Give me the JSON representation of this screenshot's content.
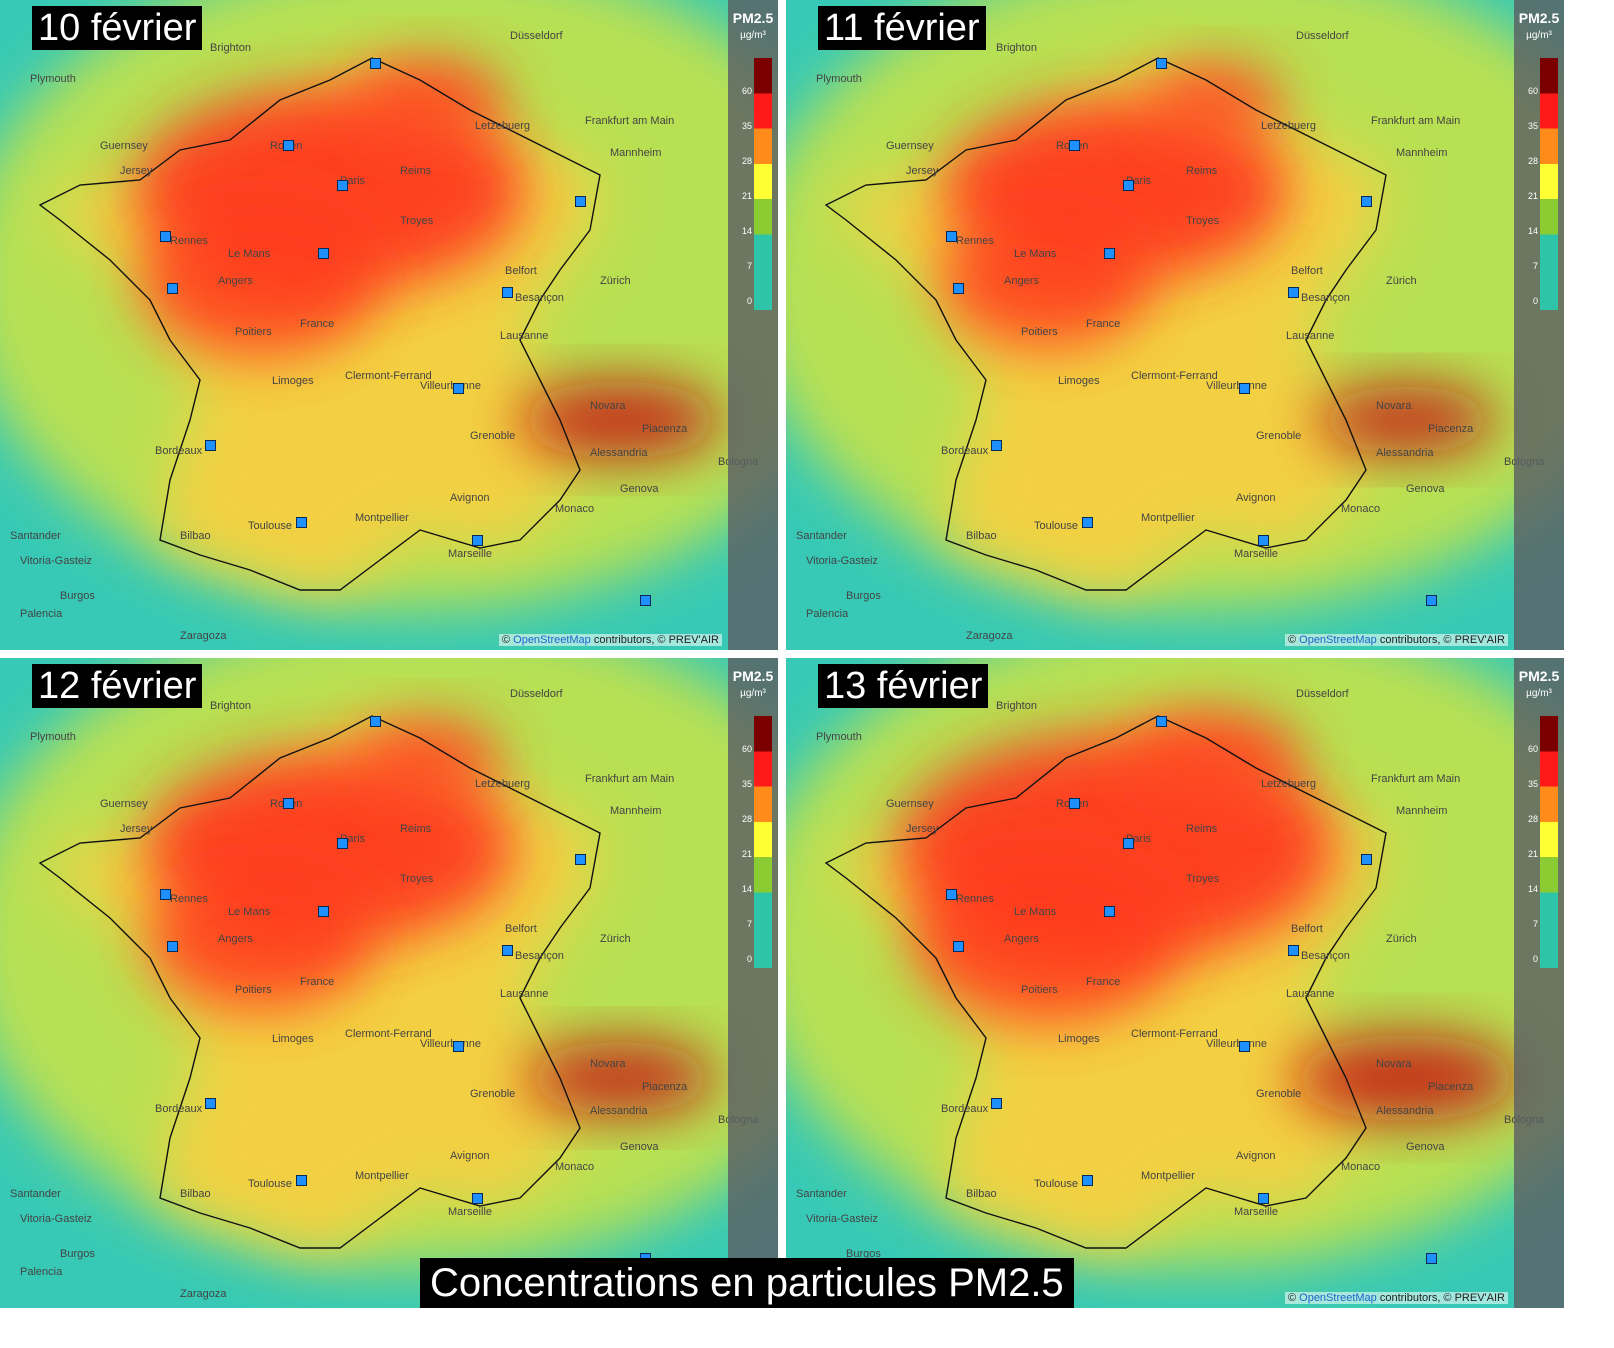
{
  "caption": "Concentrations en particules PM2.5",
  "legend": {
    "title": "PM2.5",
    "unit": "µg/m³",
    "ticks": [
      "60",
      "35",
      "28",
      "21",
      "14",
      "7",
      "0"
    ],
    "colors": [
      "#7a0000",
      "#ff1a1a",
      "#ff8c1a",
      "#ffff33",
      "#8ccc33",
      "#2ec4a8"
    ]
  },
  "credit": {
    "prefix": "© ",
    "osm": "OpenStreetMap",
    "rest": " contributors, © PREV'AIR"
  },
  "cities": [
    "Paris",
    "Rennes",
    "Le Mans",
    "Angers",
    "Poitiers",
    "France",
    "Limoges",
    "Clermont-Ferrand",
    "Villeurbanne",
    "Grenoble",
    "Bordeaux",
    "Toulouse",
    "Montpellier",
    "Marseille",
    "Reims",
    "Troyes",
    "Belfort",
    "Besançon",
    "Lausanne",
    "Genova",
    "Bologna",
    "Zaragoza",
    "Vitoria-Gasteiz",
    "Frankfurt am Main",
    "Düsseldorf",
    "Letzebuerg",
    "Rouen",
    "Jersey",
    "Guernsey",
    "Plymouth",
    "Brighton",
    "Mannheim",
    "Zürich",
    "Novara",
    "Piacenza",
    "Alessandria",
    "Monaco",
    "Avignon",
    "Bilbao",
    "Santander",
    "Burgos",
    "Palencia"
  ],
  "panels": [
    {
      "date": "10 février",
      "level": 0.85
    },
    {
      "date": "11 février",
      "level": 0.75
    },
    {
      "date": "12 février",
      "level": 0.8
    },
    {
      "date": "13 février",
      "level": 0.95
    }
  ]
}
